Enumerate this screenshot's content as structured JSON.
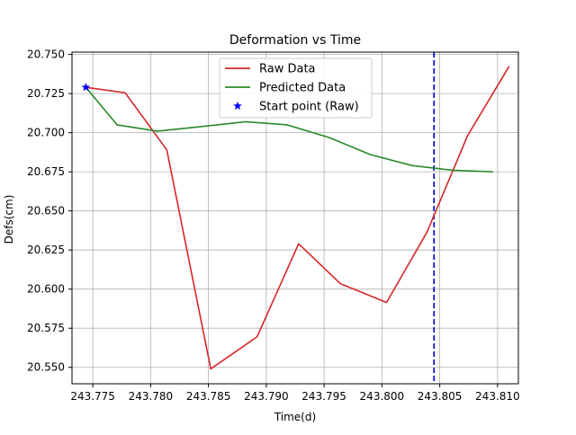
{
  "chart_data": {
    "type": "line",
    "title": "Deformation vs Time",
    "xlabel": "Time(d)",
    "ylabel": "Defs(cm)",
    "xlim": [
      243.7732,
      243.8118
    ],
    "ylim": [
      20.5395,
      20.7515
    ],
    "xticks": [
      243.775,
      243.78,
      243.785,
      243.79,
      243.795,
      243.8,
      243.805,
      243.81
    ],
    "xtick_labels": [
      "243.775",
      "243.780",
      "243.785",
      "243.790",
      "243.795",
      "243.800",
      "243.805",
      "243.810"
    ],
    "yticks": [
      20.55,
      20.575,
      20.6,
      20.625,
      20.65,
      20.675,
      20.7,
      20.725,
      20.75
    ],
    "ytick_labels": [
      "20.550",
      "20.575",
      "20.600",
      "20.625",
      "20.650",
      "20.675",
      "20.700",
      "20.725",
      "20.750"
    ],
    "grid": true,
    "legend_position": "top-center",
    "series": [
      {
        "name": "Raw Data",
        "color": "#d62728",
        "style": "solid",
        "x": [
          243.7744,
          243.7778,
          243.7814,
          243.7852,
          243.7892,
          243.7928,
          243.7964,
          243.8004,
          243.8039,
          243.8074,
          243.811
        ],
        "y": [
          20.729,
          20.7255,
          20.689,
          20.549,
          20.5695,
          20.629,
          20.6035,
          20.5915,
          20.6365,
          20.698,
          20.7425
        ]
      },
      {
        "name": "Predicted Data",
        "color": "#2a8a2a",
        "style": "solid",
        "x": [
          243.7744,
          243.7771,
          243.7806,
          243.7845,
          243.7882,
          243.7918,
          243.7954,
          243.799,
          243.8026,
          243.8061,
          243.8096
        ],
        "y": [
          20.729,
          20.705,
          20.701,
          20.704,
          20.707,
          20.705,
          20.697,
          20.686,
          20.679,
          20.676,
          20.675
        ]
      }
    ],
    "markers": [
      {
        "name": "Start point (Raw)",
        "shape": "star",
        "color": "#0000ff",
        "x": 243.7744,
        "y": 20.729
      }
    ],
    "vlines": [
      {
        "x": 243.8045,
        "color": "#0000cc",
        "style": "dashed"
      }
    ]
  }
}
